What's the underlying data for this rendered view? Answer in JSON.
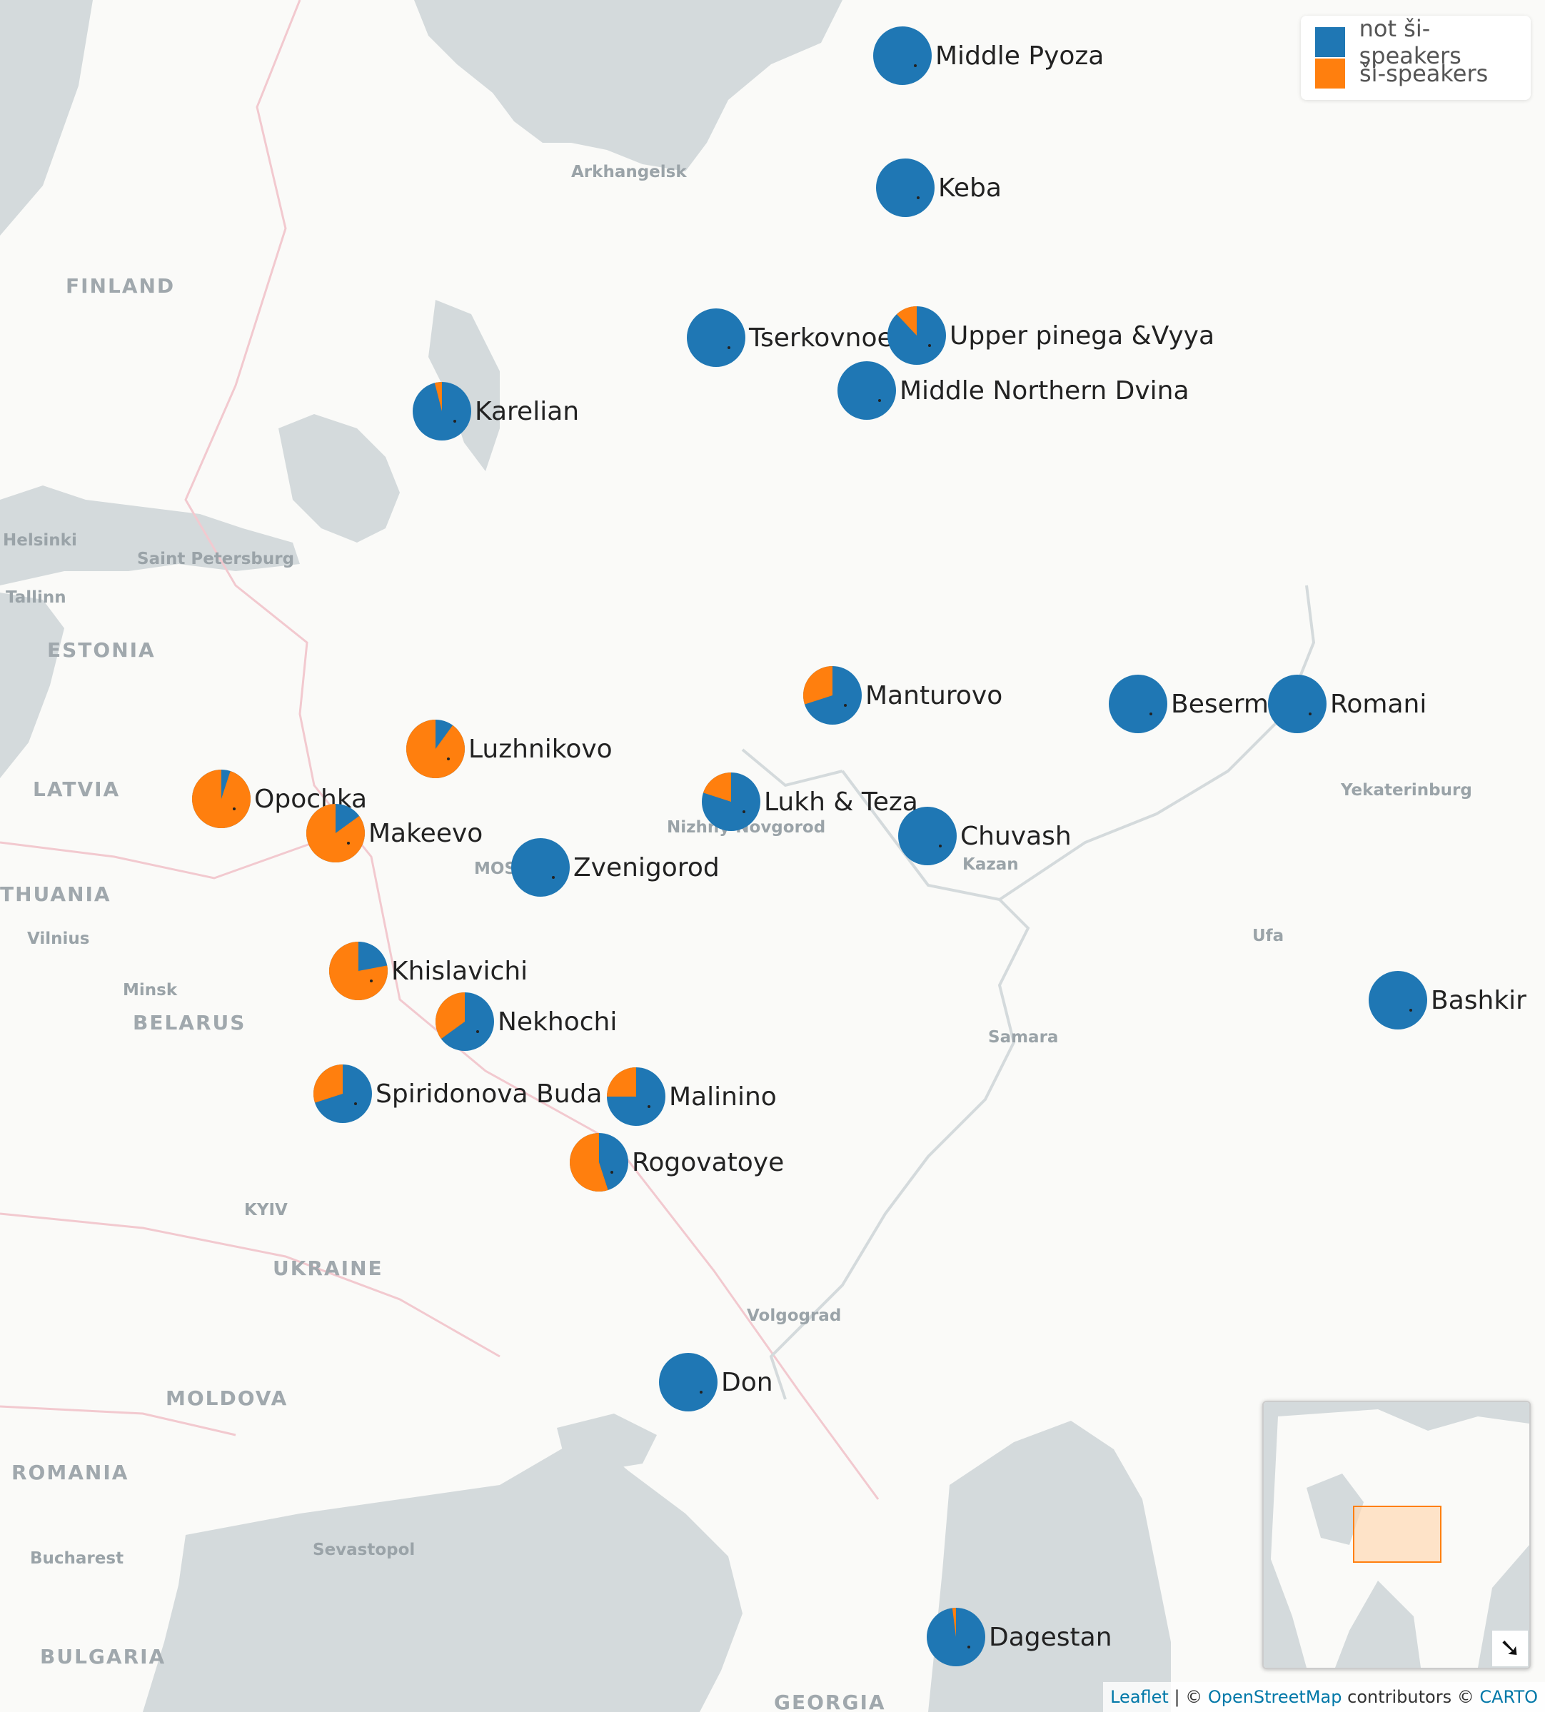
{
  "colors": {
    "not_si": "#1f77b4",
    "si": "#ff7f0e",
    "water": "#d4dadc",
    "land": "#fafaf8",
    "border": "#f2c9cf"
  },
  "legend": {
    "items": [
      {
        "label": "not ši-speakers",
        "color": "#1f77b4"
      },
      {
        "label": "ši-speakers",
        "color": "#ff7f0e"
      }
    ]
  },
  "base_labels": {
    "countries": [
      "FINLAND",
      "ESTONIA",
      "LATVIA",
      "THUANIA",
      "BELARUS",
      "UKRAINE",
      "MOLDOVA",
      "ROMANIA",
      "BULGARIA",
      "GEORGIA"
    ],
    "cities": [
      "Arkhangelsk",
      "Helsinki",
      "Saint Petersburg",
      "Tallinn",
      "Vilnius",
      "Minsk",
      "MOS",
      "Nizhny Novgorod",
      "Kazan",
      "Yekaterinburg",
      "Ufa",
      "Samara",
      "Volgograd",
      "KYIV",
      "Sevastopol",
      "Bucharest"
    ]
  },
  "chart_data": {
    "type": "pie-map",
    "series_names": [
      "not ši-speakers",
      "ši-speakers"
    ],
    "points": [
      {
        "name": "Middle Pyoza",
        "si_share": 0.0
      },
      {
        "name": "Keba",
        "si_share": 0.0
      },
      {
        "name": "Tserkovnoe",
        "si_share": 0.0
      },
      {
        "name": "Upper pinega &Vyya",
        "si_share": 0.12
      },
      {
        "name": "Middle Northern Dvina",
        "si_share": 0.0
      },
      {
        "name": "Karelian",
        "si_share": 0.04
      },
      {
        "name": "Manturovo",
        "si_share": 0.3
      },
      {
        "name": "Beserman",
        "si_share": 0.0
      },
      {
        "name": "Romani",
        "si_share": 0.0
      },
      {
        "name": "Luzhnikovo",
        "si_share": 0.9
      },
      {
        "name": "Opochka",
        "si_share": 0.95
      },
      {
        "name": "Makeevo",
        "si_share": 0.85
      },
      {
        "name": "Lukh & Teza",
        "si_share": 0.2
      },
      {
        "name": "Chuvash",
        "si_share": 0.0
      },
      {
        "name": "Zvenigorod",
        "si_share": 0.0
      },
      {
        "name": "Khislavichi",
        "si_share": 0.78
      },
      {
        "name": "Nekhochi",
        "si_share": 0.35
      },
      {
        "name": "Bashkir",
        "si_share": 0.0
      },
      {
        "name": "Spiridonova Buda",
        "si_share": 0.3
      },
      {
        "name": "Malinino",
        "si_share": 0.25
      },
      {
        "name": "Rogovatoye",
        "si_share": 0.55
      },
      {
        "name": "Don",
        "si_share": 0.0
      },
      {
        "name": "Dagestan",
        "si_share": 0.02
      }
    ]
  },
  "minimap": {
    "toggle_glyph": "➘"
  },
  "attribution": {
    "leaflet": "Leaflet",
    "sep": " | © ",
    "osm": "OpenStreetMap",
    "contributors": " contributors © ",
    "carto": "CARTO"
  }
}
